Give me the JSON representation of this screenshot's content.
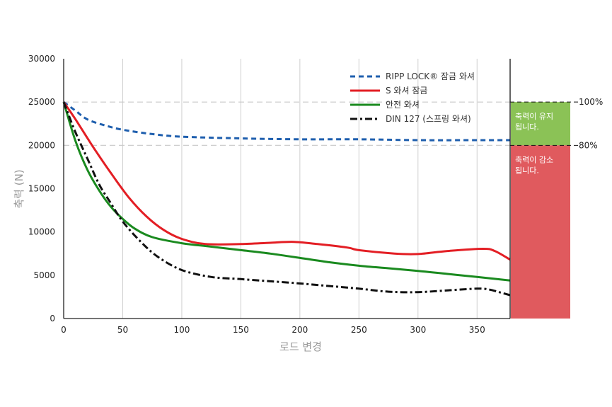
{
  "chart_data": {
    "type": "line",
    "xlabel": "로드 변경",
    "ylabel": "축력 (N)",
    "xlim": [
      0,
      378
    ],
    "ylim": [
      0,
      30000
    ],
    "x_ticks": [
      "0",
      "50",
      "100",
      "150",
      "200",
      "250",
      "300",
      "350"
    ],
    "y_ticks": [
      "0",
      "5000",
      "10000",
      "15000",
      "20000",
      "25000",
      "30000"
    ],
    "grid": "vertical",
    "legend_position": "top-right",
    "series": [
      {
        "name": "RIPP LOCK® 잠금 와셔",
        "color": "#1f5fae",
        "style": "dashed",
        "x": [
          0,
          10,
          20,
          35,
          50,
          75,
          100,
          150,
          200,
          250,
          300,
          350,
          378
        ],
        "y": [
          25000,
          24000,
          23000,
          22300,
          21800,
          21300,
          21000,
          20800,
          20700,
          20700,
          20600,
          20600,
          20600
        ]
      },
      {
        "name": "S 와셔 잠금",
        "color": "#e31e24",
        "style": "solid",
        "x": [
          0,
          10,
          25,
          40,
          55,
          70,
          85,
          100,
          120,
          150,
          175,
          195,
          215,
          240,
          250,
          280,
          300,
          325,
          355,
          365,
          378
        ],
        "y": [
          25000,
          23000,
          19800,
          16800,
          14000,
          11800,
          10200,
          9200,
          8600,
          8600,
          8750,
          8850,
          8600,
          8200,
          7900,
          7500,
          7450,
          7800,
          8050,
          7800,
          6800
        ]
      },
      {
        "name": "안전 와셔",
        "color": "#1a8a1f",
        "style": "solid",
        "x": [
          0,
          10,
          20,
          30,
          40,
          50,
          60,
          75,
          100,
          125,
          150,
          175,
          200,
          225,
          250,
          275,
          300,
          325,
          350,
          378
        ],
        "y": [
          25000,
          20500,
          17200,
          14800,
          12900,
          11500,
          10400,
          9400,
          8700,
          8300,
          7900,
          7500,
          7000,
          6500,
          6100,
          5800,
          5500,
          5150,
          4800,
          4400
        ]
      },
      {
        "name": "DIN 127 (스프링 와셔)",
        "color": "#111111",
        "style": "dashdot",
        "x": [
          0,
          10,
          20,
          30,
          40,
          50,
          65,
          80,
          100,
          125,
          150,
          175,
          200,
          225,
          250,
          275,
          300,
          325,
          350,
          360,
          370,
          378
        ],
        "y": [
          25000,
          21500,
          18500,
          15500,
          13300,
          11200,
          8900,
          7100,
          5600,
          4800,
          4550,
          4300,
          4050,
          3750,
          3450,
          3100,
          3050,
          3250,
          3450,
          3350,
          3000,
          2700
        ]
      }
    ],
    "reference_lines": [
      {
        "y": 25000,
        "label": "100%"
      },
      {
        "y": 20000,
        "label": "80%"
      }
    ],
    "bands": [
      {
        "from": 20000,
        "to": 25000,
        "color": "#8bc256",
        "lines": [
          "축력이 유지",
          "됩니다."
        ]
      },
      {
        "from": 0,
        "to": 20000,
        "color": "#e05a5e",
        "lines": [
          "축력이 감소",
          "됩니다."
        ]
      }
    ]
  }
}
